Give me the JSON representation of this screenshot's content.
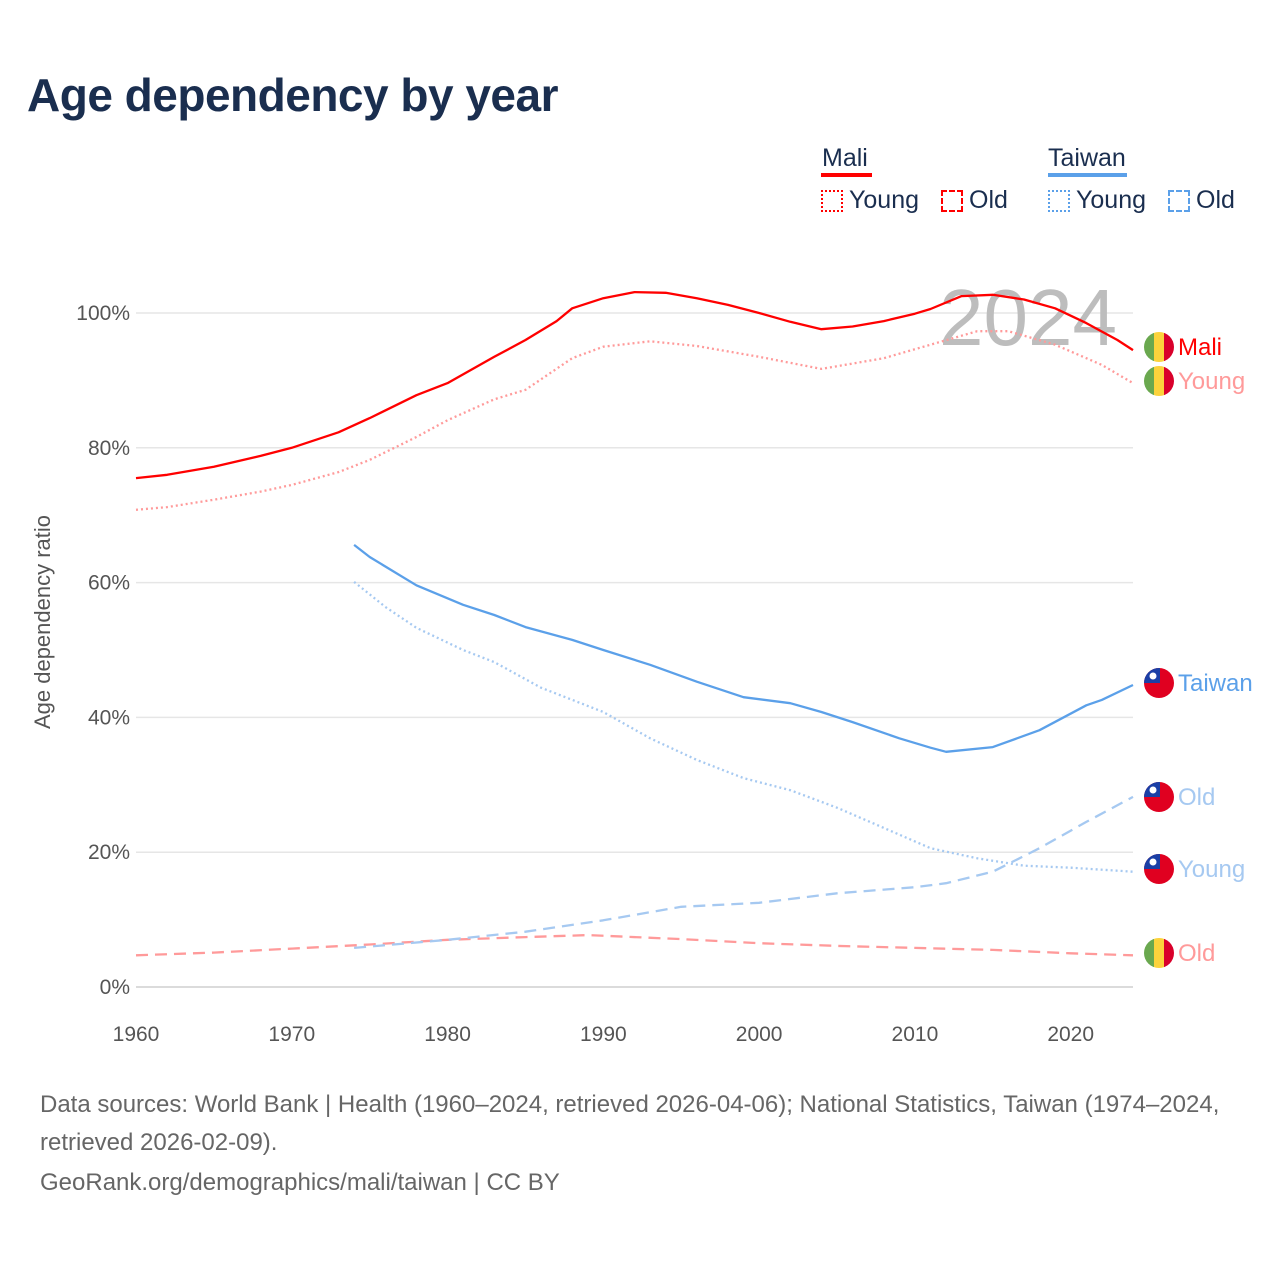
{
  "title": "Age dependency by year",
  "legend": {
    "groups": [
      {
        "name": "Mali",
        "color": "#ff0000",
        "young_label": "Young",
        "old_label": "Old"
      },
      {
        "name": "Taiwan",
        "color": "#5ba0e9",
        "young_label": "Young",
        "old_label": "Old"
      }
    ]
  },
  "footer": {
    "sources": "Data sources: World Bank | Health (1960–2024, retrieved 2026-04-06); National Statistics, Taiwan (1974–2024, retrieved 2026-02-09).",
    "link": "GeoRank.org/demographics/mali/taiwan | CC BY"
  },
  "chart_data": {
    "type": "line",
    "title": "Age dependency by year",
    "xlabel": "",
    "ylabel": "Age dependency ratio",
    "xlim": [
      1960,
      2024
    ],
    "ylim": [
      0,
      105
    ],
    "x_ticks": [
      "1960",
      "1970",
      "1980",
      "1990",
      "2000",
      "2010",
      "2020"
    ],
    "y_ticks": [
      "0%",
      "20%",
      "40%",
      "60%",
      "80%",
      "100%"
    ],
    "grid": true,
    "current_year_label": "2024",
    "series": [
      {
        "name": "Mali",
        "end_label": "Mali",
        "country": "mali",
        "style": "solid",
        "color": "#ff0000",
        "x": [
          1960,
          1962,
          1965,
          1968,
          1970,
          1973,
          1975,
          1978,
          1980,
          1983,
          1985,
          1987,
          1988,
          1990,
          1992,
          1994,
          1996,
          1998,
          2000,
          2002,
          2004,
          2006,
          2008,
          2010,
          2011,
          2013,
          2015,
          2017,
          2019,
          2021,
          2023,
          2024
        ],
        "y": [
          75.5,
          76,
          77.2,
          78.8,
          80,
          82.3,
          84.4,
          87.8,
          89.6,
          93.5,
          96,
          98.8,
          100.7,
          102.2,
          103.1,
          103,
          102.2,
          101.2,
          100,
          98.7,
          97.6,
          98,
          98.8,
          99.9,
          100.6,
          102.5,
          102.7,
          102,
          100.7,
          98.5,
          96,
          94.5
        ]
      },
      {
        "name": "Mali Young",
        "end_label": "Young",
        "country": "mali",
        "style": "dotted",
        "color": "#ff9a9a",
        "x": [
          1960,
          1962,
          1965,
          1968,
          1970,
          1973,
          1975,
          1978,
          1980,
          1983,
          1985,
          1988,
          1990,
          1993,
          1996,
          2000,
          2004,
          2008,
          2011,
          2014,
          2016,
          2019,
          2022,
          2024
        ],
        "y": [
          70.8,
          71.2,
          72.3,
          73.5,
          74.5,
          76.4,
          78.2,
          81.6,
          84.1,
          87.2,
          88.6,
          93.3,
          95,
          95.8,
          95.1,
          93.5,
          91.7,
          93.3,
          95.3,
          97.3,
          97.3,
          95.3,
          92.3,
          89.6
        ]
      },
      {
        "name": "Mali Old",
        "end_label": "Old",
        "country": "mali",
        "style": "dashed",
        "color": "#ff9a9a",
        "x": [
          1960,
          1965,
          1970,
          1975,
          1980,
          1985,
          1989,
          1995,
          2000,
          2005,
          2010,
          2015,
          2020,
          2024
        ],
        "y": [
          4.7,
          5.1,
          5.7,
          6.3,
          7.0,
          7.4,
          7.7,
          7.1,
          6.5,
          6.1,
          5.8,
          5.5,
          5.0,
          4.7
        ]
      },
      {
        "name": "Taiwan",
        "end_label": "Taiwan",
        "country": "taiwan",
        "style": "solid",
        "color": "#5ba0e9",
        "x": [
          1974,
          1975,
          1978,
          1981,
          1983,
          1985,
          1988,
          1990,
          1993,
          1996,
          1999,
          2002,
          2004,
          2006,
          2009,
          2011,
          2012,
          2015,
          2018,
          2021,
          2022,
          2024
        ],
        "y": [
          65.6,
          63.8,
          59.6,
          56.7,
          55.2,
          53.4,
          51.5,
          50,
          47.8,
          45.3,
          43,
          42.1,
          40.8,
          39.3,
          36.9,
          35.5,
          34.9,
          35.6,
          38.1,
          41.8,
          42.6,
          44.8
        ]
      },
      {
        "name": "Taiwan Old",
        "end_label": "Old",
        "country": "taiwan",
        "style": "dashed",
        "color": "#a6c9f1",
        "x": [
          1974,
          1980,
          1985,
          1990,
          1995,
          2000,
          2005,
          2010,
          2012,
          2015,
          2018,
          2021,
          2024
        ],
        "y": [
          5.8,
          7.0,
          8.2,
          9.9,
          11.9,
          12.5,
          13.9,
          14.8,
          15.4,
          17.1,
          20.6,
          24.5,
          28.2
        ]
      },
      {
        "name": "Taiwan Young",
        "end_label": "Young",
        "country": "taiwan",
        "style": "dotted",
        "color": "#a6c9f1",
        "x": [
          1974,
          1976,
          1978,
          1981,
          1983,
          1986,
          1990,
          1993,
          1996,
          1999,
          2002,
          2005,
          2008,
          2011,
          2014,
          2017,
          2020,
          2024
        ],
        "y": [
          60.1,
          56.4,
          53.3,
          50,
          48.2,
          44.4,
          40.8,
          36.9,
          33.7,
          31,
          29.2,
          26.6,
          23.6,
          20.6,
          19.1,
          18,
          17.7,
          17.1
        ]
      }
    ]
  }
}
